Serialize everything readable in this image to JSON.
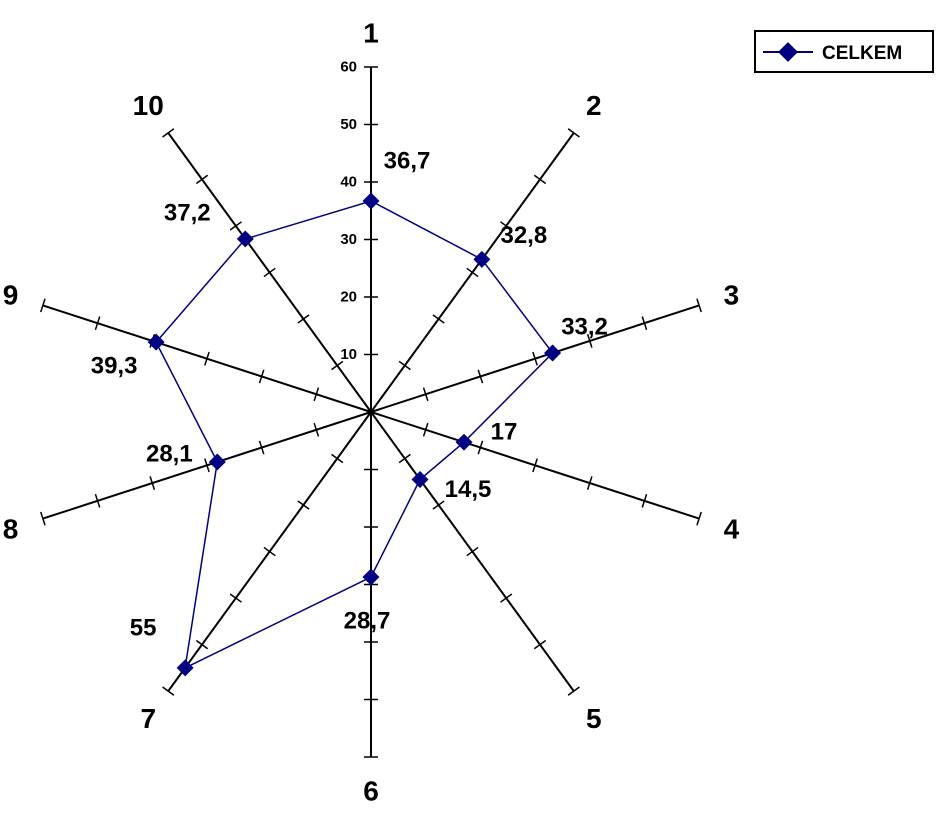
{
  "chart_data": {
    "type": "radar",
    "categories": [
      "1",
      "2",
      "3",
      "4",
      "5",
      "6",
      "7",
      "8",
      "9",
      "10"
    ],
    "series": [
      {
        "name": "CELKEM",
        "values": [
          36.7,
          32.8,
          33.2,
          17,
          14.5,
          28.7,
          55,
          28.1,
          39.3,
          37.2
        ],
        "color": "#000080"
      }
    ],
    "data_labels": [
      "36,7",
      "32,8",
      "33,2",
      "17",
      "14,5",
      "28,7",
      "55",
      "28,1",
      "39,3",
      "37,2"
    ],
    "r_ticks": [
      10,
      20,
      30,
      40,
      50,
      60
    ],
    "r_range": [
      0,
      60
    ],
    "axis_color": "#000000",
    "legend_position": "top-right"
  }
}
